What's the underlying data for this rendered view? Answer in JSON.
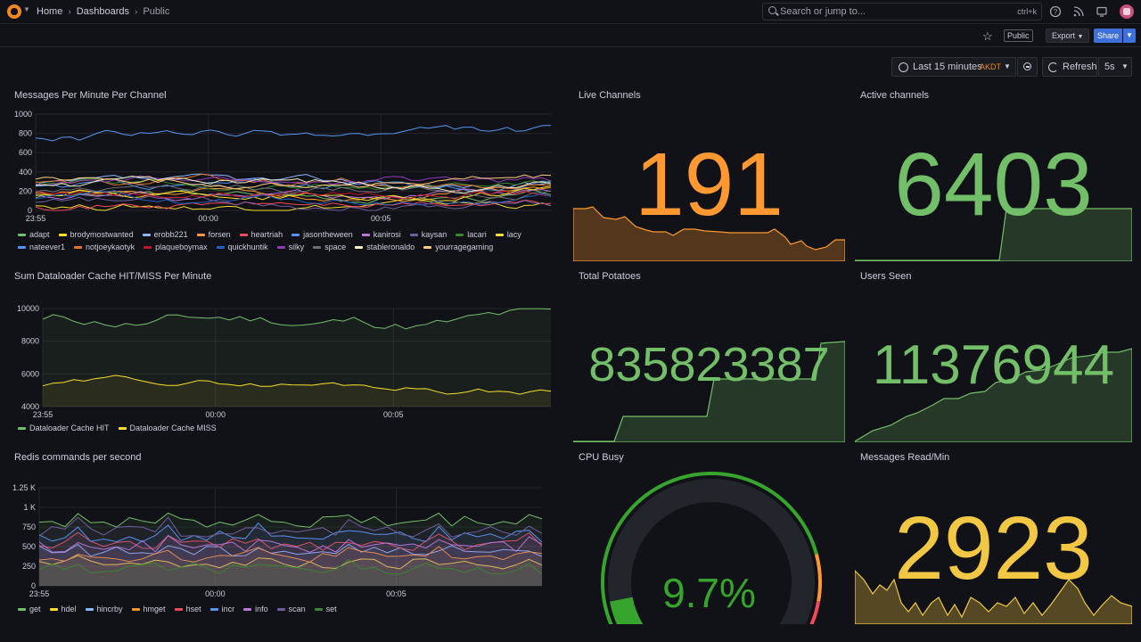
{
  "nav": {
    "breadcrumbs": [
      "Home",
      "Dashboards",
      "Public"
    ],
    "search_placeholder": "Search or jump to...",
    "search_shortcut": "ctrl+k",
    "icons": [
      "help-icon",
      "news-icon",
      "monitor-icon"
    ]
  },
  "toolbar": {
    "public_label": "Public",
    "export_label": "Export",
    "share_label": "Share"
  },
  "time": {
    "range_label": "Last 15 minutes",
    "timezone": "AKDT",
    "refresh_label": "Refresh",
    "interval": "5s"
  },
  "panels": {
    "messages": {
      "title": "Messages Per Minute Per Channel",
      "y_ticks": [
        "1000",
        "800",
        "600",
        "400",
        "200",
        "0"
      ],
      "x_ticks": [
        "23:55",
        "00:00",
        "00:05"
      ],
      "legend": [
        {
          "name": "adapt",
          "color": "#73bf69"
        },
        {
          "name": "brodymostwanted",
          "color": "#fade2a"
        },
        {
          "name": "erobb221",
          "color": "#8ab8ff"
        },
        {
          "name": "forsen",
          "color": "#ff9830"
        },
        {
          "name": "heartriah",
          "color": "#f2495c"
        },
        {
          "name": "jasontheween",
          "color": "#5794f2"
        },
        {
          "name": "kanirosi",
          "color": "#b877d9"
        },
        {
          "name": "kaysan",
          "color": "#705da0"
        },
        {
          "name": "lacari",
          "color": "#37872d"
        },
        {
          "name": "lacy",
          "color": "#fade2a"
        },
        {
          "name": "nateever1",
          "color": "#5794f2"
        },
        {
          "name": "notjoeykaotyk",
          "color": "#e0752d"
        },
        {
          "name": "plaqueboymax",
          "color": "#c4162a"
        },
        {
          "name": "quickhuntik",
          "color": "#1f60c4"
        },
        {
          "name": "silky",
          "color": "#8f3bb8"
        },
        {
          "name": "space",
          "color": "#6e6e78"
        },
        {
          "name": "stableronaldo",
          "color": "#f4f0c2"
        },
        {
          "name": "yourragegaming",
          "color": "#ffcb7d"
        }
      ]
    },
    "live_channels": {
      "title": "Live Channels",
      "value": "191",
      "color": "#ff9830"
    },
    "active_channels": {
      "title": "Active channels",
      "value": "6403",
      "color": "#73bf69"
    },
    "dataloader": {
      "title": "Sum Dataloader Cache HIT/MISS Per Minute",
      "y_ticks": [
        "10000",
        "8000",
        "6000",
        "4000"
      ],
      "x_ticks": [
        "23:55",
        "00:00",
        "00:05"
      ],
      "legend": [
        {
          "name": "Dataloader Cache HIT",
          "color": "#73bf69"
        },
        {
          "name": "Dataloader Cache MISS",
          "color": "#fade2a"
        }
      ]
    },
    "total_potatoes": {
      "title": "Total Potatoes",
      "value": "835823387",
      "color": "#73bf69"
    },
    "users_seen": {
      "title": "Users Seen",
      "value": "11376944",
      "color": "#73bf69"
    },
    "redis": {
      "title": "Redis commands per second",
      "y_ticks": [
        "1.25 K",
        "1 K",
        "750",
        "500",
        "250",
        "0"
      ],
      "x_ticks": [
        "23:55",
        "00:00",
        "00:05"
      ],
      "legend": [
        {
          "name": "get",
          "color": "#73bf69"
        },
        {
          "name": "hdel",
          "color": "#fade2a"
        },
        {
          "name": "hincrby",
          "color": "#8ab8ff"
        },
        {
          "name": "hmget",
          "color": "#ff9830"
        },
        {
          "name": "hset",
          "color": "#f2495c"
        },
        {
          "name": "incr",
          "color": "#5794f2"
        },
        {
          "name": "info",
          "color": "#b877d9"
        },
        {
          "name": "scan",
          "color": "#705da0"
        },
        {
          "name": "set",
          "color": "#37872d"
        }
      ]
    },
    "cpu_busy": {
      "title": "CPU Busy",
      "value": "9.7%",
      "percent": 9.7,
      "color": "#37a52d"
    },
    "messages_read": {
      "title": "Messages Read/Min",
      "value": "2923",
      "color": "#f2c744"
    }
  }
}
